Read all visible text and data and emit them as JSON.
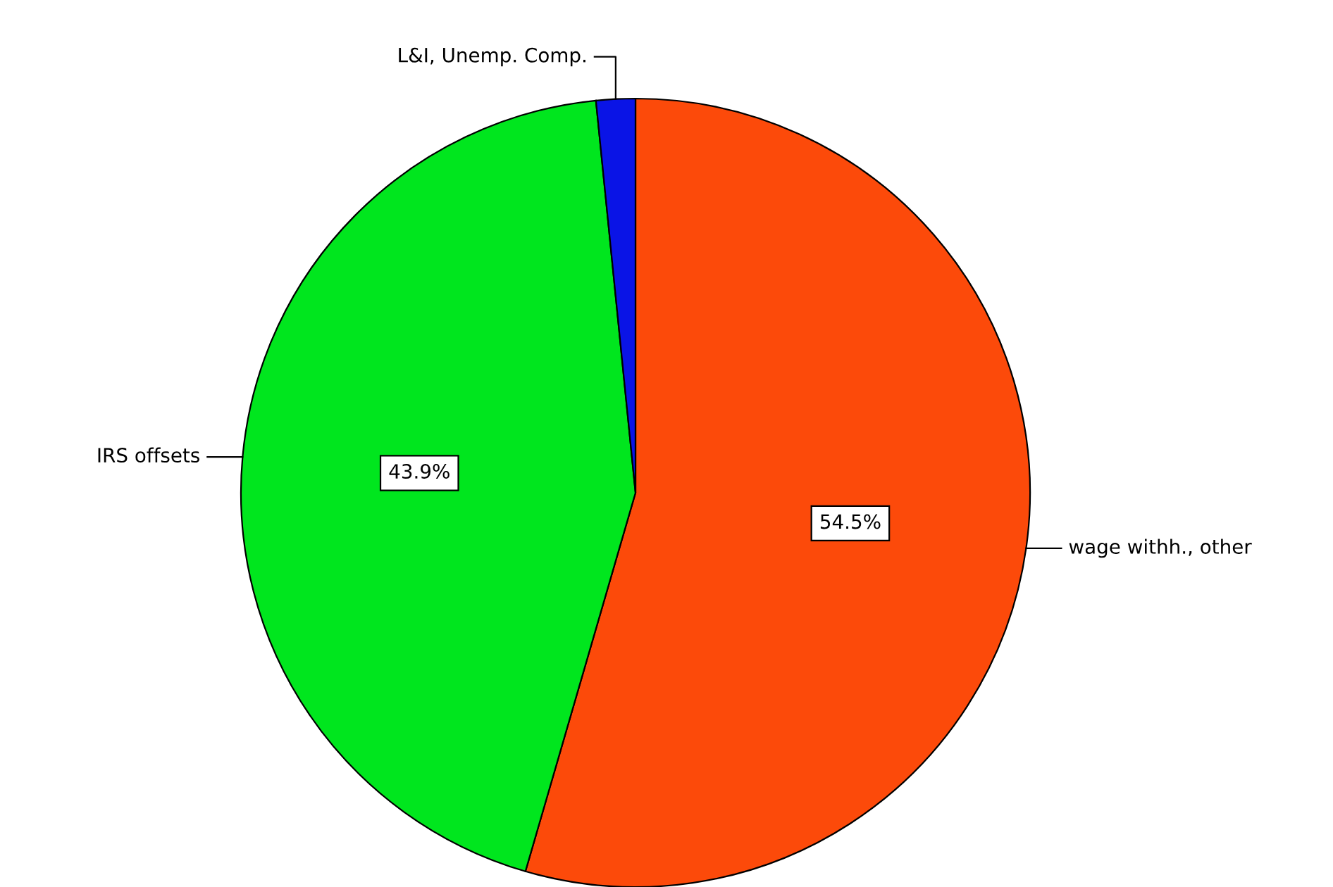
{
  "chart_data": {
    "type": "pie",
    "categories": [
      "wage withh., other",
      "IRS offsets",
      "L&I, Unemp. Comp."
    ],
    "values": [
      54.5,
      43.9,
      1.6
    ],
    "colors": [
      "#fc4a0a",
      "#00e61e",
      "#0a14e6"
    ],
    "value_labels": [
      "54.5%",
      "43.9%",
      null
    ],
    "legend": false
  }
}
